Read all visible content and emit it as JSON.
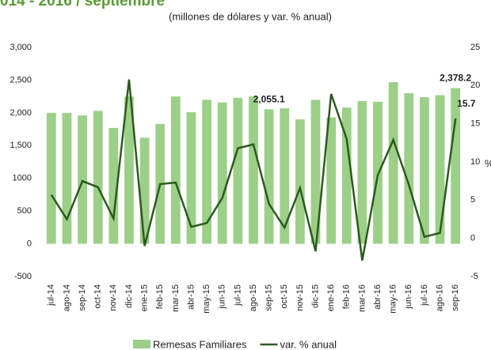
{
  "chart_data": {
    "type": "bar_line",
    "title": "014 - 2016 / septiembre",
    "subtitle": "(millones de dólares y var. % anual)",
    "categories": [
      "jul-14",
      "ago-14",
      "sep-14",
      "oct-14",
      "nov-14",
      "dic-14",
      "ene-15",
      "feb-15",
      "mar-15",
      "abr-15",
      "may-15",
      "jun-15",
      "jul-15",
      "ago-15",
      "sep-15",
      "oct-15",
      "nov-15",
      "dic-15",
      "ene-16",
      "feb-16",
      "mar-16",
      "abr-16",
      "may-16",
      "jun-16",
      "jul-16",
      "ago-16",
      "sep-16"
    ],
    "series": [
      {
        "name": "Remesas Familiares",
        "type": "bar",
        "color": "#9ccf88",
        "values": [
          2000,
          2000,
          1960,
          2030,
          1770,
          2250,
          1620,
          1830,
          2250,
          2010,
          2200,
          2160,
          2230,
          2250,
          2055.1,
          2070,
          1900,
          2200,
          1930,
          2080,
          2180,
          2170,
          2470,
          2300,
          2240,
          2270,
          2378.2
        ],
        "value_labels": [
          null,
          null,
          null,
          null,
          null,
          null,
          null,
          null,
          null,
          null,
          null,
          null,
          null,
          null,
          "2,055.1",
          null,
          null,
          null,
          null,
          null,
          null,
          null,
          null,
          null,
          null,
          null,
          "2,378.2"
        ]
      },
      {
        "name": "var. % anual",
        "type": "line",
        "axis": "y2",
        "color": "#2e5a20",
        "values": [
          5.7,
          2.5,
          7.5,
          6.7,
          2.6,
          20.8,
          -1.0,
          7.1,
          7.3,
          1.5,
          2.0,
          5.3,
          11.8,
          12.3,
          4.5,
          1.4,
          6.6,
          -1.7,
          18.9,
          13.0,
          -2.9,
          8.3,
          12.9,
          7.0,
          0.2,
          0.7,
          15.7
        ],
        "value_labels": [
          null,
          null,
          null,
          null,
          null,
          null,
          null,
          null,
          null,
          null,
          null,
          null,
          null,
          null,
          null,
          null,
          null,
          null,
          null,
          null,
          null,
          null,
          null,
          null,
          null,
          null,
          "15.7"
        ]
      }
    ],
    "ylim": [
      -500,
      3000
    ],
    "yticks": [
      {
        "value": -500,
        "label": "-500"
      },
      0,
      500,
      1000,
      {
        "value": 1500,
        "label": "1,500"
      },
      {
        "value": 2000,
        "label": "2,000"
      },
      {
        "value": 2500,
        "label": "2,500"
      },
      {
        "value": 3000,
        "label": "3,000"
      }
    ],
    "y2lim": [
      -5,
      25
    ],
    "y2ticks": [
      -5,
      0,
      5,
      10,
      15,
      20,
      25
    ],
    "y2label": "%"
  }
}
